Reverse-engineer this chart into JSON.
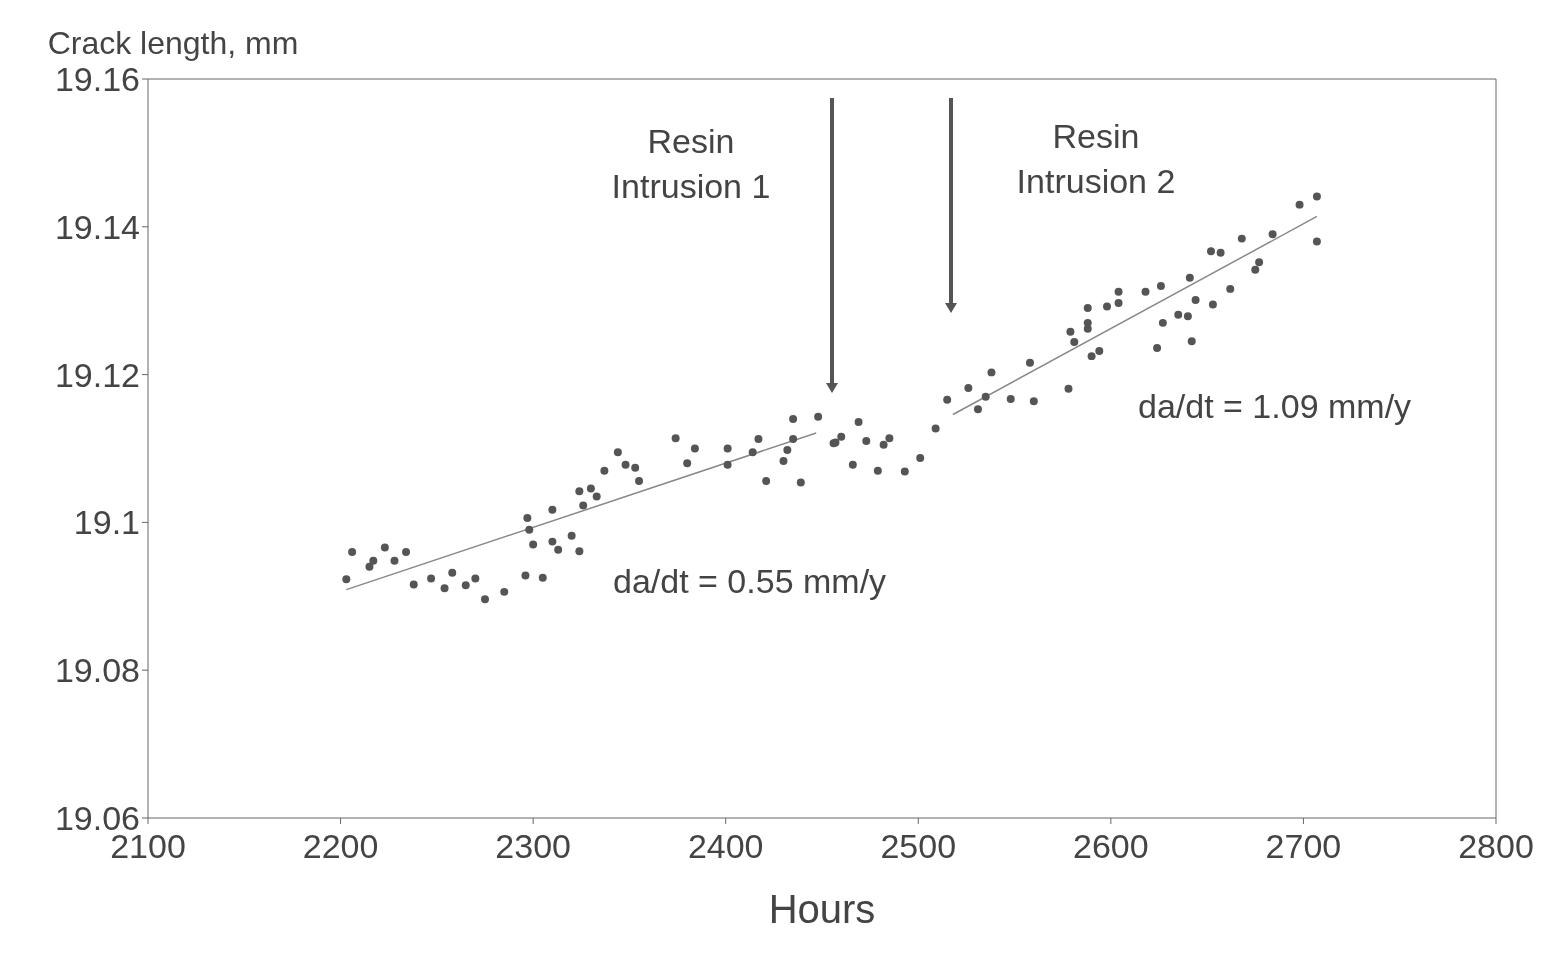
{
  "chart_data": {
    "type": "scatter",
    "xlabel": "Hours",
    "ylabel": "Crack length, mm",
    "xlim": [
      2100,
      2800
    ],
    "xticks": [
      2100,
      2200,
      2300,
      2400,
      2500,
      2600,
      2700,
      2800
    ],
    "ylim": [
      19.06,
      19.16
    ],
    "yticks": [
      19.06,
      19.08,
      19.1,
      19.12,
      19.14,
      19.16
    ],
    "marker": "circle",
    "series": [
      {
        "color": "#555555",
        "x": [
          2203,
          2206,
          2215,
          2217,
          2223,
          2228,
          2234,
          2238,
          2247,
          2254,
          2258,
          2265,
          2270,
          2275,
          2285,
          2296,
          2297,
          2298,
          2300,
          2305,
          2310,
          2310,
          2313,
          2320,
          2324,
          2324,
          2326,
          2330,
          2333,
          2337,
          2344,
          2348,
          2353,
          2355,
          2374,
          2380,
          2384,
          2401,
          2401,
          2414,
          2417,
          2421,
          2430,
          2432,
          2435,
          2435,
          2439,
          2448,
          2457,
          2456,
          2460,
          2466,
          2469,
          2473,
          2479,
          2482,
          2485,
          2493,
          2501,
          2509,
          2515,
          2526,
          2531,
          2535,
          2538,
          2548,
          2558,
          2560,
          2578,
          2579,
          2581,
          2588,
          2588,
          2588,
          2590,
          2594,
          2598,
          2604,
          2604,
          2618,
          2624,
          2626,
          2627,
          2635,
          2640,
          2641,
          2642,
          2644,
          2653,
          2652,
          2657,
          2662,
          2668,
          2675,
          2677,
          2684,
          2698,
          2707,
          2707
        ],
        "values": [
          19.0923,
          19.096,
          19.094,
          19.0948,
          19.0966,
          19.0948,
          19.096,
          19.0916,
          19.0924,
          19.0911,
          19.0932,
          19.0915,
          19.0924,
          19.0896,
          19.0906,
          19.0928,
          19.1006,
          19.099,
          19.097,
          19.0925,
          19.1017,
          19.0974,
          19.0963,
          19.0982,
          19.0961,
          19.1042,
          19.1023,
          19.1046,
          19.1035,
          19.107,
          19.1095,
          19.1078,
          19.1074,
          19.1056,
          19.1114,
          19.108,
          19.11,
          19.11,
          19.1078,
          19.1095,
          19.1113,
          19.1056,
          19.1083,
          19.1098,
          19.114,
          19.1113,
          19.1054,
          19.1143,
          19.1108,
          19.1107,
          19.1116,
          19.1078,
          19.1136,
          19.111,
          19.107,
          19.1105,
          19.1114,
          19.1069,
          19.1087,
          19.1127,
          19.1166,
          19.1182,
          19.1153,
          19.117,
          19.1203,
          19.1167,
          19.1216,
          19.1164,
          19.1181,
          19.1258,
          19.1244,
          19.129,
          19.1262,
          19.127,
          19.1225,
          19.1232,
          19.1292,
          19.1312,
          19.1297,
          19.1312,
          19.1236,
          19.132,
          19.127,
          19.1281,
          19.1279,
          19.1331,
          19.1245,
          19.1301,
          19.1295,
          19.1367,
          19.1365,
          19.1316,
          19.1384,
          19.1342,
          19.1352,
          19.139,
          19.143,
          19.1441,
          19.138
        ]
      },
      {
        "type": "line",
        "marker": "none",
        "color": "#888888",
        "x": [
          2203,
          2447
        ],
        "values": [
          19.0909,
          19.1121
        ]
      },
      {
        "type": "line",
        "marker": "none",
        "color": "#888888",
        "x": [
          2518,
          2707
        ],
        "values": [
          19.1146,
          19.1414
        ]
      }
    ],
    "annotations": [
      "Resin\nIntrusion 1",
      "Resin\nIntrusion 2",
      "da/dt = 0.55 mm/y",
      "da/dt = 1.09 mm/y"
    ]
  }
}
